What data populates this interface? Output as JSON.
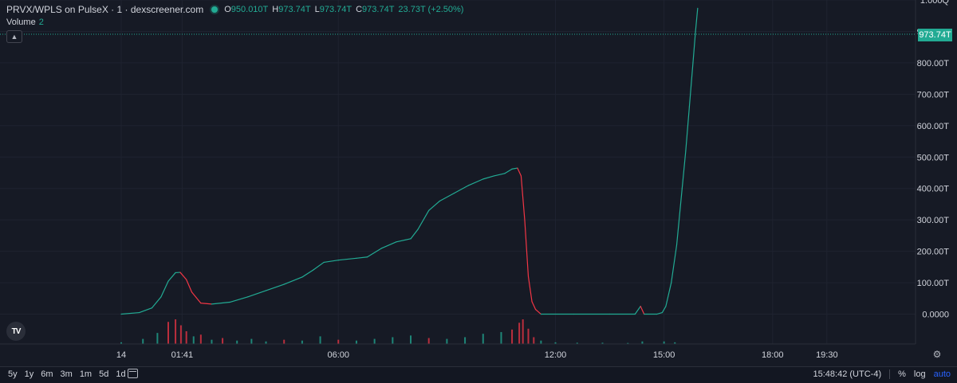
{
  "header": {
    "title": "PRVX/WPLS on PulseX · 1 · dexscreener.com",
    "ohlc": {
      "o_label": "O",
      "o_value": "950.010T",
      "h_label": "H",
      "h_value": "973.74T",
      "l_label": "L",
      "l_value": "973.74T",
      "c_label": "C",
      "c_value": "973.74T",
      "change": "23.73T (+2.50%)"
    },
    "volume_label": "Volume",
    "volume_value": "2"
  },
  "price_tag": "973.74T",
  "colors": {
    "up": "#22ab94",
    "down": "#f23645",
    "background": "#161a25",
    "grid": "#1f2330"
  },
  "icons": {
    "collapse": "chevron-up-icon",
    "logo": "tradingview-logo",
    "settings": "gear-icon",
    "calendar": "calendar-icon"
  },
  "logo_text": "TV",
  "bottom_bar": {
    "ranges": [
      "5y",
      "1y",
      "6m",
      "3m",
      "1m",
      "5d",
      "1d"
    ],
    "time": "15:48:42 (UTC-4)",
    "percent_label": "%",
    "log_label": "log",
    "auto_label": "auto"
  },
  "chart_data": {
    "type": "line",
    "title": "PRVX/WPLS on PulseX · 1 · dexscreener.com",
    "xlabel": "",
    "ylabel": "",
    "y_unit": "T",
    "ylim": [
      -95,
      1000
    ],
    "x_unit": "hours from 00:00 on day 14",
    "xlim": [
      -3.35,
      21.95
    ],
    "x_ticks": [
      {
        "x": 0,
        "label": "14"
      },
      {
        "x": 1.683,
        "label": "01:41"
      },
      {
        "x": 6,
        "label": "06:00"
      },
      {
        "x": 12,
        "label": "12:00"
      },
      {
        "x": 15,
        "label": "15:00"
      },
      {
        "x": 18,
        "label": "18:00"
      },
      {
        "x": 19.5,
        "label": "19:30"
      }
    ],
    "y_ticks": [
      {
        "y": 1000,
        "label": "1.000Q"
      },
      {
        "y": 900,
        "label": "900.00T"
      },
      {
        "y": 800,
        "label": "800.00T"
      },
      {
        "y": 700,
        "label": "700.00T"
      },
      {
        "y": 600,
        "label": "600.00T"
      },
      {
        "y": 500,
        "label": "500.00T"
      },
      {
        "y": 400,
        "label": "400.00T"
      },
      {
        "y": 300,
        "label": "300.00T"
      },
      {
        "y": 200,
        "label": "200.00T"
      },
      {
        "y": 100,
        "label": "100.00T"
      },
      {
        "y": 0,
        "label": "0.0000"
      }
    ],
    "last_price": 973.74,
    "grid": true,
    "series": [
      {
        "points": [
          [
            0,
            0
          ],
          [
            0.5,
            5
          ],
          [
            0.85,
            20
          ],
          [
            1.1,
            55
          ],
          [
            1.3,
            105
          ],
          [
            1.5,
            132
          ],
          [
            1.63,
            133
          ],
          [
            1.8,
            110
          ],
          [
            1.95,
            70
          ],
          [
            2.2,
            35
          ],
          [
            2.5,
            32
          ],
          [
            3.0,
            38
          ],
          [
            3.5,
            55
          ],
          [
            4.0,
            75
          ],
          [
            4.5,
            95
          ],
          [
            5.0,
            118
          ],
          [
            5.3,
            140
          ],
          [
            5.6,
            165
          ],
          [
            6.0,
            172
          ],
          [
            6.5,
            178
          ],
          [
            6.8,
            182
          ],
          [
            7.2,
            210
          ],
          [
            7.6,
            230
          ],
          [
            8.0,
            240
          ],
          [
            8.2,
            270
          ],
          [
            8.5,
            330
          ],
          [
            8.8,
            360
          ],
          [
            9.2,
            385
          ],
          [
            9.6,
            410
          ],
          [
            10.0,
            430
          ],
          [
            10.3,
            440
          ],
          [
            10.6,
            448
          ],
          [
            10.8,
            462
          ],
          [
            10.95,
            465
          ],
          [
            11.05,
            440
          ],
          [
            11.15,
            300
          ],
          [
            11.25,
            120
          ],
          [
            11.35,
            40
          ],
          [
            11.45,
            15
          ],
          [
            11.6,
            0
          ],
          [
            12.5,
            0
          ],
          [
            13.5,
            0
          ],
          [
            14.2,
            0
          ],
          [
            14.35,
            25
          ],
          [
            14.45,
            0
          ],
          [
            14.8,
            0
          ],
          [
            14.95,
            5
          ],
          [
            15.05,
            25
          ],
          [
            15.2,
            100
          ],
          [
            15.35,
            220
          ],
          [
            15.5,
            400
          ],
          [
            15.6,
            520
          ],
          [
            15.7,
            660
          ],
          [
            15.8,
            800
          ],
          [
            15.87,
            900
          ],
          [
            15.93,
            973.74
          ]
        ]
      }
    ],
    "volume": {
      "ylim": [
        0,
        3
      ],
      "bars": [
        [
          0,
          0.2,
          "up"
        ],
        [
          0.6,
          0.6,
          "up"
        ],
        [
          1.0,
          1.3,
          "up"
        ],
        [
          1.3,
          2.6,
          "down"
        ],
        [
          1.5,
          2.9,
          "down"
        ],
        [
          1.65,
          2.2,
          "down"
        ],
        [
          1.8,
          1.5,
          "down"
        ],
        [
          2.0,
          0.9,
          "up"
        ],
        [
          2.2,
          1.1,
          "down"
        ],
        [
          2.5,
          0.5,
          "up"
        ],
        [
          2.8,
          0.7,
          "down"
        ],
        [
          3.2,
          0.4,
          "up"
        ],
        [
          3.6,
          0.6,
          "up"
        ],
        [
          4.0,
          0.3,
          "up"
        ],
        [
          4.5,
          0.5,
          "down"
        ],
        [
          5.0,
          0.4,
          "up"
        ],
        [
          5.5,
          0.9,
          "up"
        ],
        [
          6.0,
          0.5,
          "down"
        ],
        [
          6.5,
          0.4,
          "up"
        ],
        [
          7.0,
          0.6,
          "up"
        ],
        [
          7.5,
          0.8,
          "up"
        ],
        [
          8.0,
          1.0,
          "up"
        ],
        [
          8.5,
          0.7,
          "down"
        ],
        [
          9.0,
          0.6,
          "up"
        ],
        [
          9.5,
          0.8,
          "up"
        ],
        [
          10.0,
          1.2,
          "up"
        ],
        [
          10.5,
          1.4,
          "up"
        ],
        [
          10.8,
          1.7,
          "down"
        ],
        [
          11.0,
          2.5,
          "down"
        ],
        [
          11.1,
          2.9,
          "down"
        ],
        [
          11.25,
          1.8,
          "down"
        ],
        [
          11.4,
          0.8,
          "down"
        ],
        [
          11.6,
          0.4,
          "up"
        ],
        [
          12.0,
          0.2,
          "up"
        ],
        [
          12.6,
          0.15,
          "up"
        ],
        [
          13.3,
          0.15,
          "up"
        ],
        [
          14.0,
          0.12,
          "up"
        ],
        [
          14.4,
          0.3,
          "up"
        ],
        [
          15.0,
          0.3,
          "up"
        ],
        [
          15.3,
          0.2,
          "up"
        ]
      ]
    }
  }
}
